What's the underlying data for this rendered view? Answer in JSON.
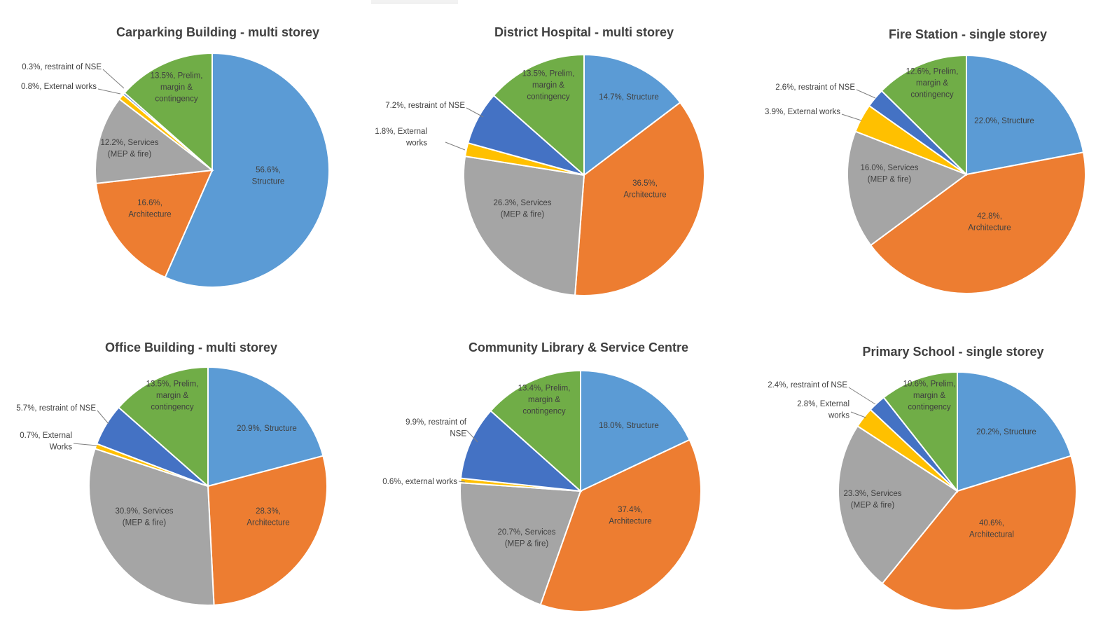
{
  "colors": {
    "structure": "#5b9bd5",
    "architecture": "#ed7d31",
    "services": "#a5a5a5",
    "external": "#ffc000",
    "nse": "#4472c4",
    "prelim": "#70ad47"
  },
  "chart_data": [
    {
      "type": "pie",
      "title": "Carparking Building - multi storey",
      "slices": [
        {
          "key": "structure",
          "value": 56.6,
          "label": [
            "56.6%,",
            "Structure"
          ]
        },
        {
          "key": "architecture",
          "value": 16.6,
          "label": [
            "16.6%,",
            "Architecture"
          ]
        },
        {
          "key": "services",
          "value": 12.2,
          "label": [
            "12.2%, Services",
            "(MEP & fire)"
          ]
        },
        {
          "key": "external",
          "value": 0.8,
          "label": [
            "0.8%, External works"
          ]
        },
        {
          "key": "nse",
          "value": 0.3,
          "label": [
            "0.3%, restraint of NSE"
          ]
        },
        {
          "key": "prelim",
          "value": 13.5,
          "label": [
            "13.5%, Prelim,",
            "margin &",
            "contingency"
          ]
        }
      ]
    },
    {
      "type": "pie",
      "title": "District Hospital - multi storey",
      "slices": [
        {
          "key": "structure",
          "value": 14.7,
          "label": [
            "14.7%, Structure"
          ]
        },
        {
          "key": "architecture",
          "value": 36.5,
          "label": [
            "36.5%,",
            "Architecture"
          ]
        },
        {
          "key": "services",
          "value": 26.3,
          "label": [
            "26.3%, Services",
            "(MEP & fire)"
          ]
        },
        {
          "key": "external",
          "value": 1.8,
          "label": [
            "1.8%, External",
            "works"
          ]
        },
        {
          "key": "nse",
          "value": 7.2,
          "label": [
            "7.2%, restraint of NSE"
          ]
        },
        {
          "key": "prelim",
          "value": 13.5,
          "label": [
            "13.5%, Prelim,",
            "margin &",
            "contingency"
          ]
        }
      ]
    },
    {
      "type": "pie",
      "title": "Fire Station - single storey",
      "slices": [
        {
          "key": "structure",
          "value": 22.0,
          "label": [
            "22.0%, Structure"
          ]
        },
        {
          "key": "architecture",
          "value": 42.8,
          "label": [
            "42.8%,",
            "Architecture"
          ]
        },
        {
          "key": "services",
          "value": 16.0,
          "label": [
            "16.0%, Services",
            "(MEP & fire)"
          ]
        },
        {
          "key": "external",
          "value": 3.9,
          "label": [
            "3.9%, External works"
          ]
        },
        {
          "key": "nse",
          "value": 2.6,
          "label": [
            "2.6%, restraint of NSE"
          ]
        },
        {
          "key": "prelim",
          "value": 12.6,
          "label": [
            "12.6%, Prelim,",
            "margin &",
            "contingency"
          ]
        }
      ]
    },
    {
      "type": "pie",
      "title": "Office Building - multi storey",
      "slices": [
        {
          "key": "structure",
          "value": 20.9,
          "label": [
            "20.9%, Structure"
          ]
        },
        {
          "key": "architecture",
          "value": 28.3,
          "label": [
            "28.3%,",
            "Architecture"
          ]
        },
        {
          "key": "services",
          "value": 30.9,
          "label": [
            "30.9%, Services",
            "(MEP & fire)"
          ]
        },
        {
          "key": "external",
          "value": 0.7,
          "label": [
            "0.7%, External",
            "Works"
          ]
        },
        {
          "key": "nse",
          "value": 5.7,
          "label": [
            "5.7%, restraint of NSE"
          ]
        },
        {
          "key": "prelim",
          "value": 13.5,
          "label": [
            "13.5%, Prelim,",
            "margin &",
            "contingency"
          ]
        }
      ]
    },
    {
      "type": "pie",
      "title": "Community Library & Service Centre",
      "slices": [
        {
          "key": "structure",
          "value": 18.0,
          "label": [
            "18.0%, Structure"
          ]
        },
        {
          "key": "architecture",
          "value": 37.4,
          "label": [
            "37.4%,",
            "Architecture"
          ]
        },
        {
          "key": "services",
          "value": 20.7,
          "label": [
            "20.7%, Services",
            "(MEP & fire)"
          ]
        },
        {
          "key": "external",
          "value": 0.6,
          "label": [
            "0.6%, external works"
          ]
        },
        {
          "key": "nse",
          "value": 9.9,
          "label": [
            "9.9%, restraint of",
            "NSE"
          ]
        },
        {
          "key": "prelim",
          "value": 13.4,
          "label": [
            "13.4%, Prelim,",
            "margin &",
            "contingency"
          ]
        }
      ]
    },
    {
      "type": "pie",
      "title": "Primary School - single storey",
      "slices": [
        {
          "key": "structure",
          "value": 20.2,
          "label": [
            "20.2%, Structure"
          ]
        },
        {
          "key": "architecture",
          "value": 40.6,
          "label": [
            "40.6%,",
            "Architectural"
          ]
        },
        {
          "key": "services",
          "value": 23.3,
          "label": [
            "23.3%, Services",
            "(MEP & fire)"
          ]
        },
        {
          "key": "external",
          "value": 2.8,
          "label": [
            "2.8%, External",
            "works"
          ]
        },
        {
          "key": "nse",
          "value": 2.4,
          "label": [
            "2.4%, restraint of NSE"
          ]
        },
        {
          "key": "prelim",
          "value": 10.6,
          "label": [
            "10.6%, Prelim,",
            "margin &",
            "contingency"
          ]
        }
      ]
    }
  ]
}
